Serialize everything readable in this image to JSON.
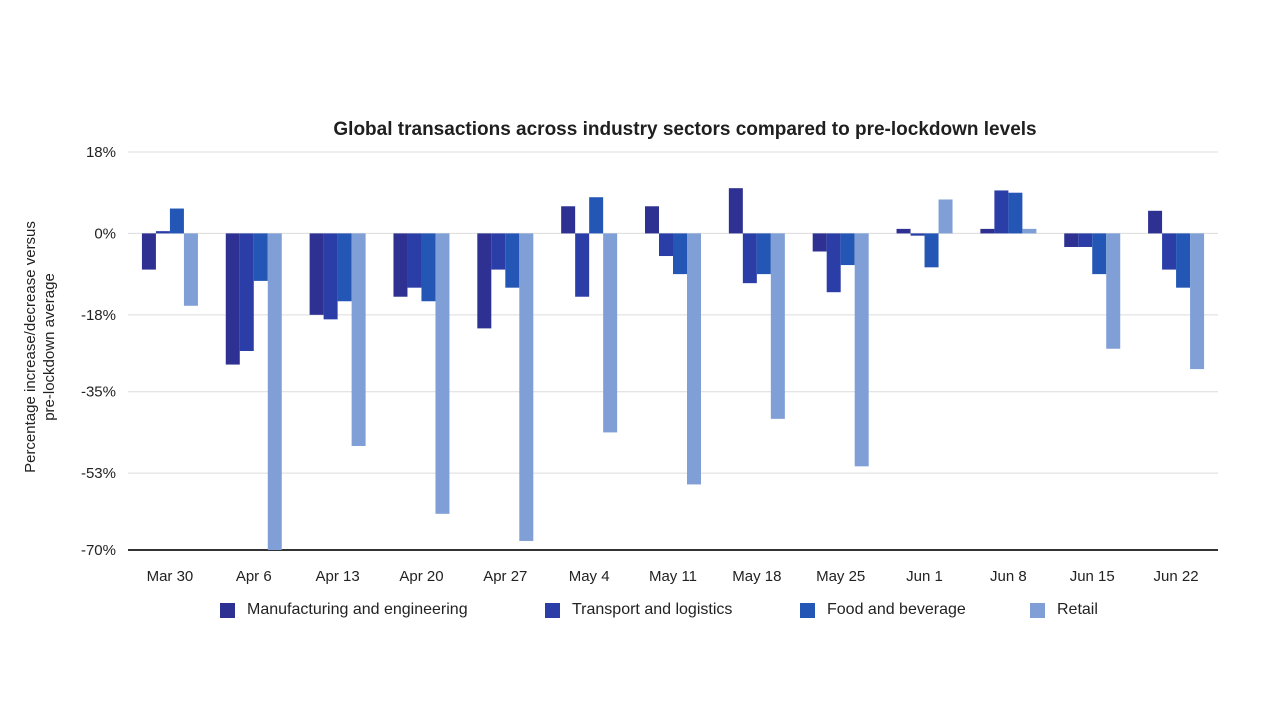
{
  "chart_data": {
    "type": "bar",
    "title": "Global transactions across industry sectors compared to pre-lockdown levels",
    "xlabel": "",
    "ylabel": "Percentage increase/decrease versus pre-lockdown average",
    "ylim": [
      -70,
      18
    ],
    "yticks": [
      "18%",
      "0%",
      "-18%",
      "-35%",
      "-53%",
      "-70%"
    ],
    "ytick_values": [
      18,
      0,
      -18,
      -35,
      -53,
      -70
    ],
    "grid": true,
    "legend_position": "bottom",
    "categories": [
      "Mar 30",
      "Apr 6",
      "Apr 13",
      "Apr 20",
      "Apr 27",
      "May 4",
      "May 11",
      "May 18",
      "May 25",
      "Jun 1",
      "Jun 8",
      "Jun 15",
      "Jun 22"
    ],
    "series": [
      {
        "name": "Manufacturing and engineering",
        "color": "#2e3191",
        "values": [
          -8,
          -29,
          -18,
          -14,
          -21,
          6,
          6,
          10,
          -4,
          1,
          1,
          -3,
          5
        ]
      },
      {
        "name": "Transport and logistics",
        "color": "#2b3ea8",
        "values": [
          0.5,
          -26,
          -19,
          -12,
          -8,
          -14,
          -5,
          -11,
          -13,
          -0.5,
          9.5,
          -3,
          -8
        ]
      },
      {
        "name": "Food and beverage",
        "color": "#2457b5",
        "values": [
          5.5,
          -10.5,
          -15,
          -15,
          -12,
          8,
          -9,
          -9,
          -7,
          -7.5,
          9,
          -9,
          -12
        ]
      },
      {
        "name": "Retail",
        "color": "#7f9fd6",
        "values": [
          -16,
          -70,
          -47,
          -62,
          -68,
          -44,
          -55.5,
          -41,
          -51.5,
          7.5,
          1,
          -25.5,
          -30
        ]
      }
    ]
  }
}
